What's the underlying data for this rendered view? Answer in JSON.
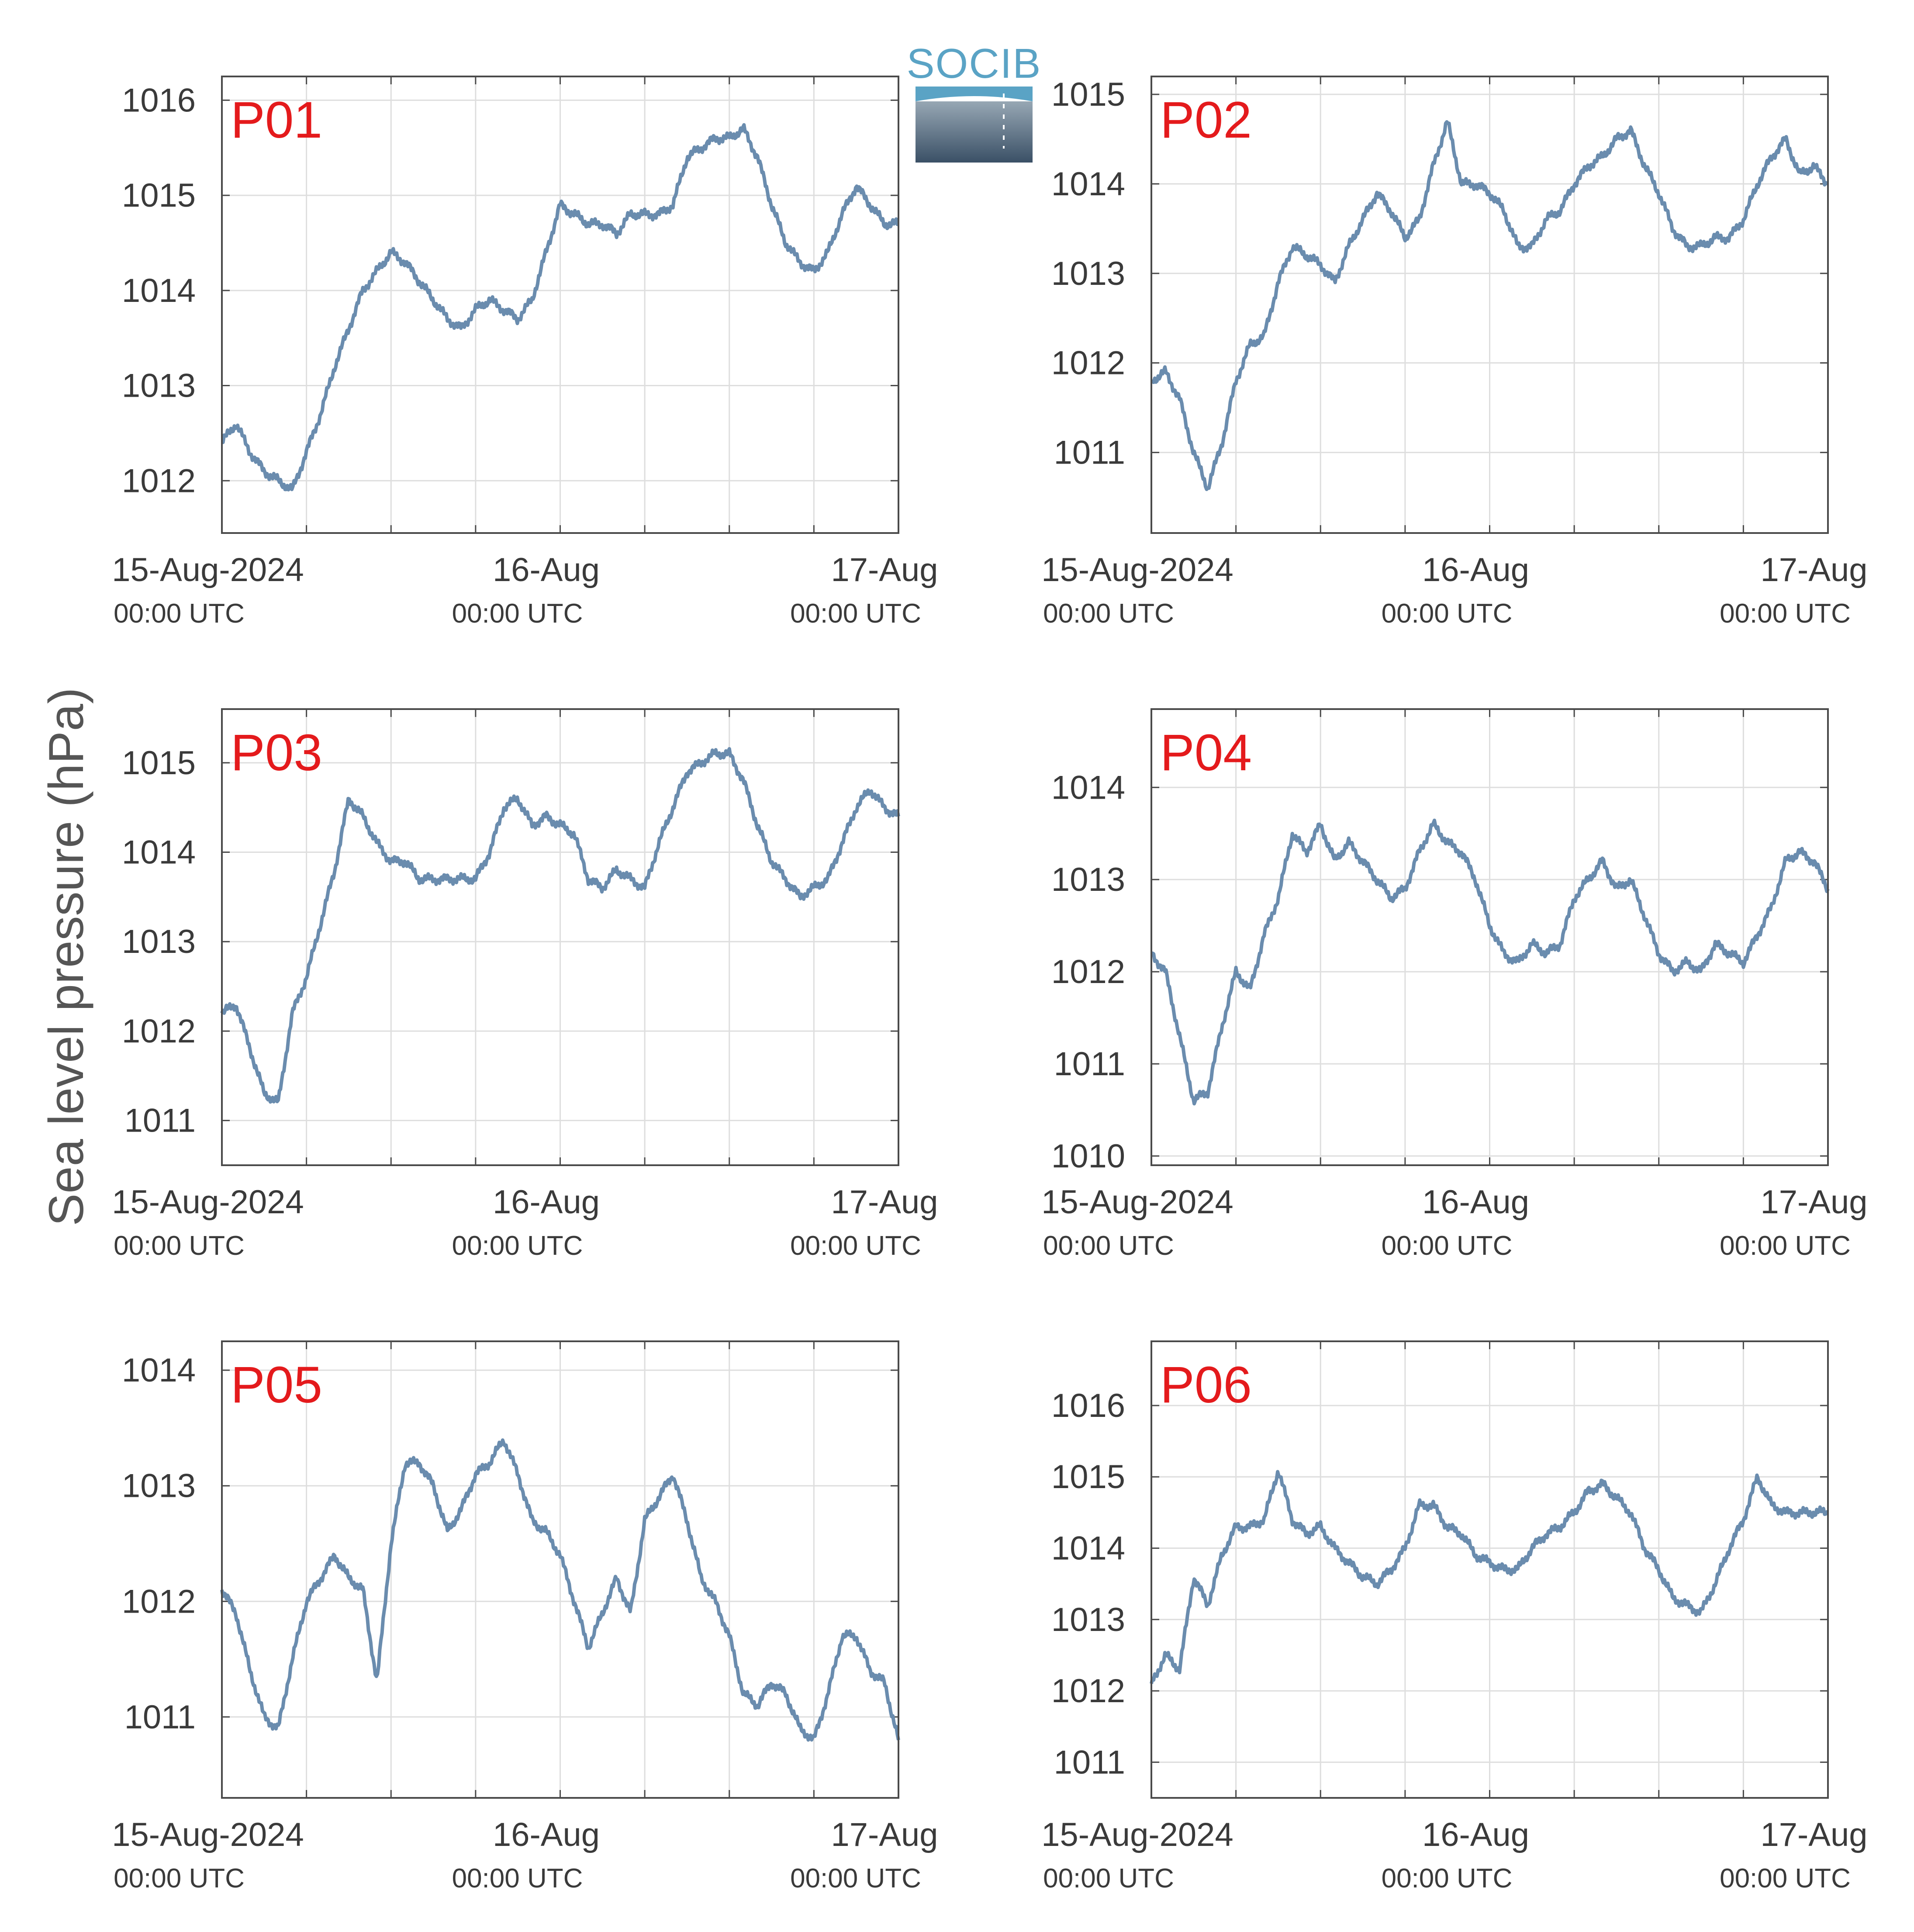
{
  "figure": {
    "ylabel": "Sea level pressure (hPa)",
    "logo_text": "SOCIB",
    "colors": {
      "line": "#6a8cae",
      "grid": "#dedede",
      "frame": "#4a4a4a",
      "panel_label": "#e41a1c",
      "text": "#3a3a3a"
    }
  },
  "chart_data": [
    {
      "type": "line",
      "label": "P01",
      "x_ticks": [
        {
          "label": "15-Aug-2024",
          "sub": "00:00 UTC"
        },
        {
          "label": "16-Aug",
          "sub": "00:00 UTC"
        },
        {
          "label": "17-Aug",
          "sub": "00:00 UTC"
        }
      ],
      "xlim": [
        0,
        48
      ],
      "ylim": [
        1011.45,
        1016.25
      ],
      "yticks": [
        1012,
        1013,
        1014,
        1015,
        1016
      ],
      "series": [
        {
          "x": [
            0,
            1,
            2,
            3,
            4,
            5,
            6,
            7,
            8,
            9,
            10,
            11,
            12,
            13,
            14,
            15,
            16,
            17,
            18,
            19,
            20,
            21,
            22,
            23,
            24,
            25,
            26,
            27,
            28,
            29,
            30,
            31,
            32,
            33,
            34,
            35,
            36,
            37,
            38,
            39,
            40,
            41,
            42,
            43,
            44,
            45,
            46,
            47,
            48
          ],
          "values": [
            1012.4,
            1012.6,
            1012.3,
            1012.1,
            1012.0,
            1011.9,
            1012.3,
            1012.7,
            1013.2,
            1013.6,
            1014.0,
            1014.2,
            1014.4,
            1014.3,
            1014.1,
            1013.9,
            1013.7,
            1013.6,
            1013.8,
            1013.9,
            1013.8,
            1013.7,
            1013.9,
            1014.4,
            1014.9,
            1014.8,
            1014.7,
            1014.7,
            1014.6,
            1014.8,
            1014.8,
            1014.8,
            1014.9,
            1015.4,
            1015.5,
            1015.6,
            1015.6,
            1015.7,
            1015.4,
            1014.9,
            1014.5,
            1014.3,
            1014.2,
            1014.4,
            1014.8,
            1015.1,
            1014.9,
            1014.7,
            1014.7
          ]
        }
      ]
    },
    {
      "type": "line",
      "label": "P02",
      "x_ticks": [
        {
          "label": "15-Aug-2024",
          "sub": "00:00 UTC"
        },
        {
          "label": "16-Aug",
          "sub": "00:00 UTC"
        },
        {
          "label": "17-Aug",
          "sub": "00:00 UTC"
        }
      ],
      "xlim": [
        0,
        48
      ],
      "ylim": [
        1010.1,
        1015.2
      ],
      "yticks": [
        1011,
        1012,
        1013,
        1014,
        1015
      ],
      "series": [
        {
          "x": [
            0,
            1,
            2,
            3,
            4,
            5,
            6,
            7,
            8,
            9,
            10,
            11,
            12,
            13,
            14,
            15,
            16,
            17,
            18,
            19,
            20,
            21,
            22,
            23,
            24,
            25,
            26,
            27,
            28,
            29,
            30,
            31,
            32,
            33,
            34,
            35,
            36,
            37,
            38,
            39,
            40,
            41,
            42,
            43,
            44,
            45,
            46,
            47,
            48
          ],
          "values": [
            1011.8,
            1011.9,
            1011.6,
            1011.0,
            1010.6,
            1011.1,
            1011.8,
            1012.2,
            1012.3,
            1012.9,
            1013.3,
            1013.2,
            1013.1,
            1012.9,
            1013.3,
            1013.6,
            1013.9,
            1013.7,
            1013.4,
            1013.6,
            1014.2,
            1014.7,
            1014.0,
            1014.0,
            1013.9,
            1013.7,
            1013.3,
            1013.3,
            1013.6,
            1013.7,
            1014.0,
            1014.2,
            1014.3,
            1014.5,
            1014.6,
            1014.2,
            1013.9,
            1013.5,
            1013.3,
            1013.3,
            1013.4,
            1013.4,
            1013.6,
            1014.0,
            1014.3,
            1014.5,
            1014.1,
            1014.2,
            1014.0
          ]
        }
      ]
    },
    {
      "type": "line",
      "label": "P03",
      "x_ticks": [
        {
          "label": "15-Aug-2024",
          "sub": "00:00 UTC"
        },
        {
          "label": "16-Aug",
          "sub": "00:00 UTC"
        },
        {
          "label": "17-Aug",
          "sub": "00:00 UTC"
        }
      ],
      "xlim": [
        0,
        48
      ],
      "ylim": [
        1010.5,
        1015.6
      ],
      "yticks": [
        1011,
        1012,
        1013,
        1014,
        1015
      ],
      "series": [
        {
          "x": [
            0,
            1,
            2,
            3,
            4,
            5,
            6,
            7,
            8,
            9,
            10,
            11,
            12,
            13,
            14,
            15,
            16,
            17,
            18,
            19,
            20,
            21,
            22,
            23,
            24,
            25,
            26,
            27,
            28,
            29,
            30,
            31,
            32,
            33,
            34,
            35,
            36,
            37,
            38,
            39,
            40,
            41,
            42,
            43,
            44,
            45,
            46,
            47,
            48
          ],
          "values": [
            1012.2,
            1012.3,
            1011.8,
            1011.3,
            1011.2,
            1012.2,
            1012.6,
            1013.2,
            1013.8,
            1014.6,
            1014.4,
            1014.1,
            1013.9,
            1013.9,
            1013.7,
            1013.7,
            1013.7,
            1013.7,
            1013.7,
            1014.0,
            1014.5,
            1014.6,
            1014.3,
            1014.4,
            1014.3,
            1014.2,
            1013.7,
            1013.6,
            1013.8,
            1013.7,
            1013.6,
            1014.1,
            1014.5,
            1014.9,
            1015.0,
            1015.1,
            1015.1,
            1014.8,
            1014.3,
            1013.9,
            1013.7,
            1013.5,
            1013.6,
            1013.7,
            1014.1,
            1014.5,
            1014.7,
            1014.5,
            1014.4
          ]
        }
      ]
    },
    {
      "type": "line",
      "label": "P04",
      "x_ticks": [
        {
          "label": "15-Aug-2024",
          "sub": "00:00 UTC"
        },
        {
          "label": "16-Aug",
          "sub": "00:00 UTC"
        },
        {
          "label": "17-Aug",
          "sub": "00:00 UTC"
        }
      ],
      "xlim": [
        0,
        48
      ],
      "ylim": [
        1009.9,
        1014.85
      ],
      "yticks": [
        1010,
        1011,
        1012,
        1013,
        1014
      ],
      "series": [
        {
          "x": [
            0,
            1,
            2,
            3,
            4,
            5,
            6,
            7,
            8,
            9,
            10,
            11,
            12,
            13,
            14,
            15,
            16,
            17,
            18,
            19,
            20,
            21,
            22,
            23,
            24,
            25,
            26,
            27,
            28,
            29,
            30,
            31,
            32,
            33,
            34,
            35,
            36,
            37,
            38,
            39,
            40,
            41,
            42,
            43,
            44,
            45,
            46,
            47,
            48
          ],
          "values": [
            1012.2,
            1012.0,
            1011.3,
            1010.6,
            1010.7,
            1011.4,
            1012.0,
            1011.8,
            1012.4,
            1012.8,
            1013.5,
            1013.3,
            1013.6,
            1013.2,
            1013.4,
            1013.2,
            1013.0,
            1012.8,
            1012.9,
            1013.3,
            1013.6,
            1013.4,
            1013.3,
            1013.0,
            1012.5,
            1012.2,
            1012.1,
            1012.3,
            1012.2,
            1012.3,
            1012.8,
            1013.0,
            1013.2,
            1012.9,
            1013.0,
            1012.6,
            1012.2,
            1012.0,
            1012.1,
            1012.0,
            1012.3,
            1012.2,
            1012.1,
            1012.4,
            1012.7,
            1013.2,
            1013.3,
            1013.2,
            1012.9
          ]
        }
      ]
    },
    {
      "type": "line",
      "label": "P05",
      "x_ticks": [
        {
          "label": "15-Aug-2024",
          "sub": "00:00 UTC"
        },
        {
          "label": "16-Aug",
          "sub": "00:00 UTC"
        },
        {
          "label": "17-Aug",
          "sub": "00:00 UTC"
        }
      ],
      "xlim": [
        0,
        48
      ],
      "ylim": [
        1010.3,
        1014.25
      ],
      "yticks": [
        1011,
        1012,
        1013,
        1014
      ],
      "series": [
        {
          "x": [
            0,
            1,
            2,
            3,
            4,
            5,
            6,
            7,
            8,
            9,
            10,
            11,
            12,
            13,
            14,
            15,
            16,
            17,
            18,
            19,
            20,
            21,
            22,
            23,
            24,
            25,
            26,
            27,
            28,
            29,
            30,
            31,
            32,
            33,
            34,
            35,
            36,
            37,
            38,
            39,
            40,
            41,
            42,
            43,
            44,
            45,
            46,
            47,
            48
          ],
          "values": [
            1012.1,
            1011.9,
            1011.4,
            1011.0,
            1010.9,
            1011.5,
            1012.0,
            1012.2,
            1012.4,
            1012.2,
            1012.1,
            1011.3,
            1012.5,
            1013.2,
            1013.2,
            1013.0,
            1012.6,
            1012.8,
            1013.1,
            1013.2,
            1013.4,
            1013.1,
            1012.7,
            1012.6,
            1012.4,
            1012.0,
            1011.6,
            1011.9,
            1012.2,
            1011.9,
            1012.7,
            1012.9,
            1013.1,
            1012.7,
            1012.2,
            1012.0,
            1011.7,
            1011.2,
            1011.1,
            1011.3,
            1011.2,
            1010.9,
            1010.8,
            1011.2,
            1011.7,
            1011.7,
            1011.4,
            1011.3,
            1010.8
          ]
        }
      ]
    },
    {
      "type": "line",
      "label": "P06",
      "x_ticks": [
        {
          "label": "15-Aug-2024",
          "sub": "00:00 UTC"
        },
        {
          "label": "16-Aug",
          "sub": "00:00 UTC"
        },
        {
          "label": "17-Aug",
          "sub": "00:00 UTC"
        }
      ],
      "xlim": [
        0,
        48
      ],
      "ylim": [
        1010.5,
        1016.9
      ],
      "yticks": [
        1011,
        1012,
        1013,
        1014,
        1015,
        1016
      ],
      "series": [
        {
          "x": [
            0,
            1,
            2,
            3,
            4,
            5,
            6,
            7,
            8,
            9,
            10,
            11,
            12,
            13,
            14,
            15,
            16,
            17,
            18,
            19,
            20,
            21,
            22,
            23,
            24,
            25,
            26,
            27,
            28,
            29,
            30,
            31,
            32,
            33,
            34,
            35,
            36,
            37,
            38,
            39,
            40,
            41,
            42,
            43,
            44,
            45,
            46,
            47,
            48
          ],
          "values": [
            1012.1,
            1012.5,
            1012.3,
            1013.6,
            1013.2,
            1013.9,
            1014.3,
            1014.3,
            1014.4,
            1015.1,
            1014.4,
            1014.2,
            1014.3,
            1014.0,
            1013.8,
            1013.6,
            1013.5,
            1013.7,
            1014.0,
            1014.6,
            1014.6,
            1014.3,
            1014.2,
            1013.9,
            1013.8,
            1013.7,
            1013.7,
            1014.0,
            1014.2,
            1014.3,
            1014.5,
            1014.8,
            1014.9,
            1014.7,
            1014.5,
            1014.0,
            1013.7,
            1013.3,
            1013.2,
            1013.1,
            1013.5,
            1014.0,
            1014.4,
            1015.0,
            1014.6,
            1014.5,
            1014.5,
            1014.5,
            1014.5
          ]
        }
      ]
    }
  ]
}
